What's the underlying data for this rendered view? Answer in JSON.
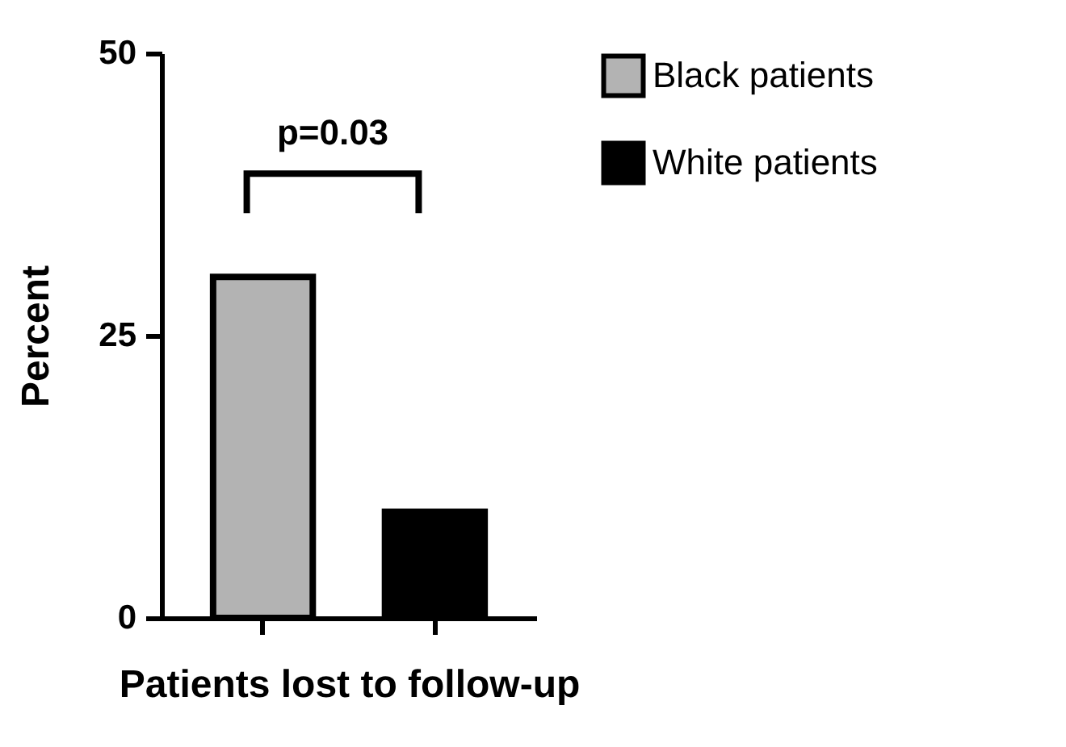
{
  "chart_data": {
    "type": "bar",
    "xlabel": "Patients lost to follow-up",
    "ylabel": "Percent",
    "categories": [
      null,
      null
    ],
    "series": [
      {
        "name": "Black patients",
        "color": "#b3b3b3",
        "values": [
          30.2,
          null
        ]
      },
      {
        "name": "White patients",
        "color": "#000000",
        "values": [
          null,
          9.4
        ]
      }
    ],
    "ylim": [
      0,
      50
    ],
    "yticks": [
      0,
      25,
      50
    ],
    "grid": false,
    "legend": "top right",
    "tick_labels": "y",
    "annotations": [
      "p=0.03"
    ]
  }
}
